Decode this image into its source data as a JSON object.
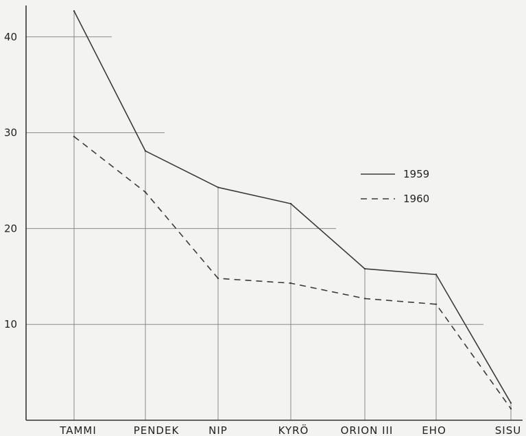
{
  "chart_data": {
    "type": "line",
    "categories": [
      "TAMMI",
      "PENDEK",
      "NIP",
      "KYRÖ",
      "ORION III",
      "EHO",
      "SISU"
    ],
    "yticks": [
      10,
      20,
      30,
      40
    ],
    "ylim": [
      0,
      43.5
    ],
    "grid": "partial horizontal lines",
    "legend_position": "center-right",
    "series": [
      {
        "name": "1959",
        "style": "solid",
        "values": [
          42.7,
          28.1,
          24.3,
          22.6,
          15.8,
          15.2,
          1.8
        ]
      },
      {
        "name": "1960",
        "style": "dashed",
        "values": [
          29.6,
          23.8,
          14.8,
          14.3,
          12.7,
          12.1,
          1.2
        ]
      }
    ],
    "colors": {
      "line": "#3a3a3a",
      "grid": "#8a8a8a",
      "background": "#f3f3f1"
    }
  }
}
